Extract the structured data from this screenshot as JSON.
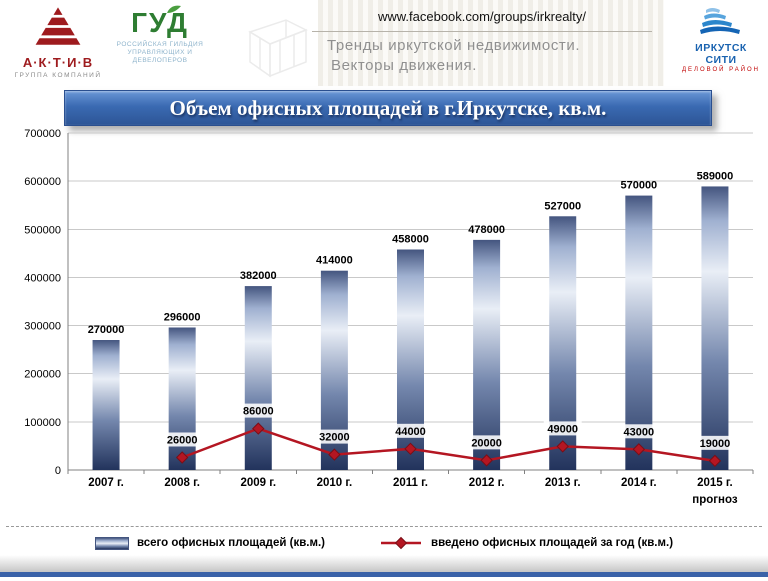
{
  "header": {
    "aktiv": {
      "title": "А·К·Т·И·В",
      "subtitle": "ГРУППА КОМПАНИЙ"
    },
    "gud": {
      "title": "ГУД",
      "subtitle_line1": "РОССИЙСКАЯ ГИЛЬДИЯ",
      "subtitle_line2": "УПРАВЛЯЮЩИХ И ДЕВЕЛОПЕРОВ"
    },
    "url": "www.facebook.com/groups/irkrealty/",
    "tagline_line1": "Тренды иркутской недвижимости.",
    "tagline_line2": "Векторы движения.",
    "irkutsk_city": {
      "title": "ИРКУТСК СИТИ",
      "subtitle": "ДЕЛОВОЙ РАЙОН"
    }
  },
  "slide_title": "Объем офисных площадей в г.Иркутске, кв.м.",
  "colors": {
    "banner_top": "#6a97d6",
    "banner_bottom": "#2d5596",
    "line": "#B41622",
    "line_marker_stroke": "#7a0e16",
    "grid": "#c9c9c9",
    "axis": "#808080",
    "footer_blue": "#3a62a8",
    "bar_gradient": [
      [
        "0%",
        "#44557F"
      ],
      [
        "12%",
        "#9FB0D0"
      ],
      [
        "30%",
        "#E9EEF6"
      ],
      [
        "62%",
        "#7487AD"
      ],
      [
        "100%",
        "#22335C"
      ]
    ]
  },
  "chart_data": {
    "type": "bar+line",
    "title": "Объем офисных площадей в г.Иркутске, кв.м.",
    "categories": [
      "2007 г.",
      "2008 г.",
      "2009 г.",
      "2010 г.",
      "2011 г.",
      "2012 г.",
      "2013 г.",
      "2014 г.",
      "2015 г."
    ],
    "last_category_note": "прогноз",
    "series": [
      {
        "name": "всего офисных площадей (кв.м.)",
        "type": "bar",
        "values": [
          270000,
          296000,
          382000,
          414000,
          458000,
          478000,
          527000,
          570000,
          589000
        ]
      },
      {
        "name": "введено офисных площадей за год (кв.м.)",
        "type": "line",
        "values": [
          null,
          26000,
          86000,
          32000,
          44000,
          20000,
          49000,
          43000,
          19000
        ]
      }
    ],
    "ylim": [
      0,
      700000
    ],
    "ytick_step": 100000,
    "yticks": [
      0,
      100000,
      200000,
      300000,
      400000,
      500000,
      600000,
      700000
    ],
    "grid": true,
    "legend_position": "bottom"
  }
}
